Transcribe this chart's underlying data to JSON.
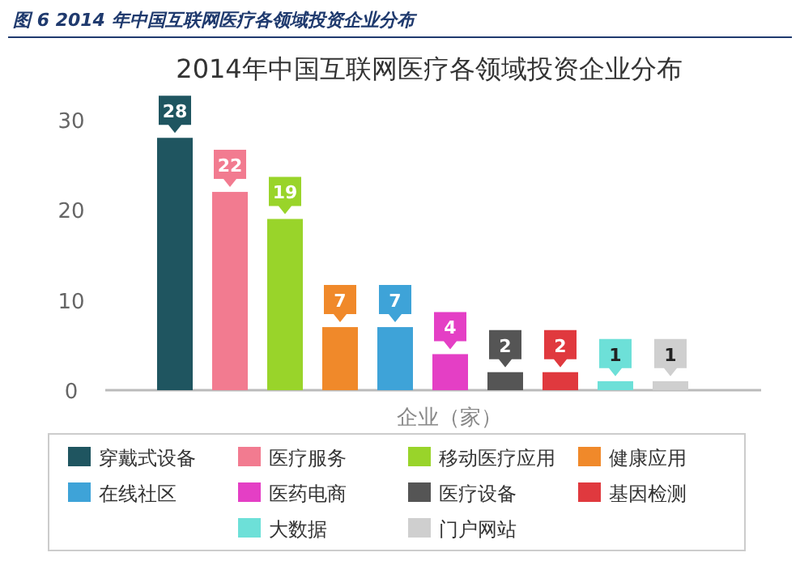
{
  "chart_data": {
    "type": "bar",
    "title": "2014年中国互联网医疗各领域投资企业分布",
    "subtitle": "图 6 2014 年中国互联网医疗各领域投资企业分布",
    "xlabel": "企业（家）",
    "categories": [
      null,
      null,
      null,
      null,
      null,
      null,
      null,
      null,
      null,
      null
    ],
    "series": [
      {
        "name": "穿戴式设备",
        "color": "#1f5560",
        "values": [
          28,
          null,
          null,
          null,
          null,
          null,
          null,
          null,
          null,
          null
        ]
      },
      {
        "name": "医疗服务",
        "color": "#f27b90",
        "values": [
          null,
          22,
          null,
          null,
          null,
          null,
          null,
          null,
          null,
          null
        ]
      },
      {
        "name": "移动医疗应用",
        "color": "#99d42a",
        "values": [
          null,
          null,
          19,
          null,
          null,
          null,
          null,
          null,
          null,
          null
        ]
      },
      {
        "name": "健康应用",
        "color": "#f0892a",
        "values": [
          null,
          null,
          null,
          7,
          null,
          null,
          null,
          null,
          null,
          null
        ]
      },
      {
        "name": "在线社区",
        "color": "#3ea3d8",
        "values": [
          null,
          null,
          null,
          null,
          7,
          null,
          null,
          null,
          null,
          null
        ]
      },
      {
        "name": "医药电商",
        "color": "#e43fc5",
        "values": [
          null,
          null,
          null,
          null,
          null,
          4,
          null,
          null,
          null,
          null
        ]
      },
      {
        "name": "医疗设备",
        "color": "#555555",
        "values": [
          null,
          null,
          null,
          null,
          null,
          null,
          2,
          null,
          null,
          null
        ]
      },
      {
        "name": "基因检测",
        "color": "#e0393e",
        "values": [
          null,
          null,
          null,
          null,
          null,
          null,
          null,
          2,
          null,
          null
        ]
      },
      {
        "name": "大数据",
        "color": "#6de0d8",
        "values": [
          null,
          null,
          null,
          null,
          null,
          null,
          null,
          null,
          1,
          null
        ]
      },
      {
        "name": "门户网站",
        "color": "#cfcfcf",
        "values": [
          null,
          null,
          null,
          null,
          null,
          null,
          null,
          null,
          null,
          1
        ]
      }
    ],
    "stacked": true,
    "ylim": [
      0,
      30
    ],
    "yticks": [
      0,
      10,
      20,
      30
    ],
    "grid": false,
    "data_labels": true,
    "legend": "bottom",
    "tick_labels": "y"
  }
}
